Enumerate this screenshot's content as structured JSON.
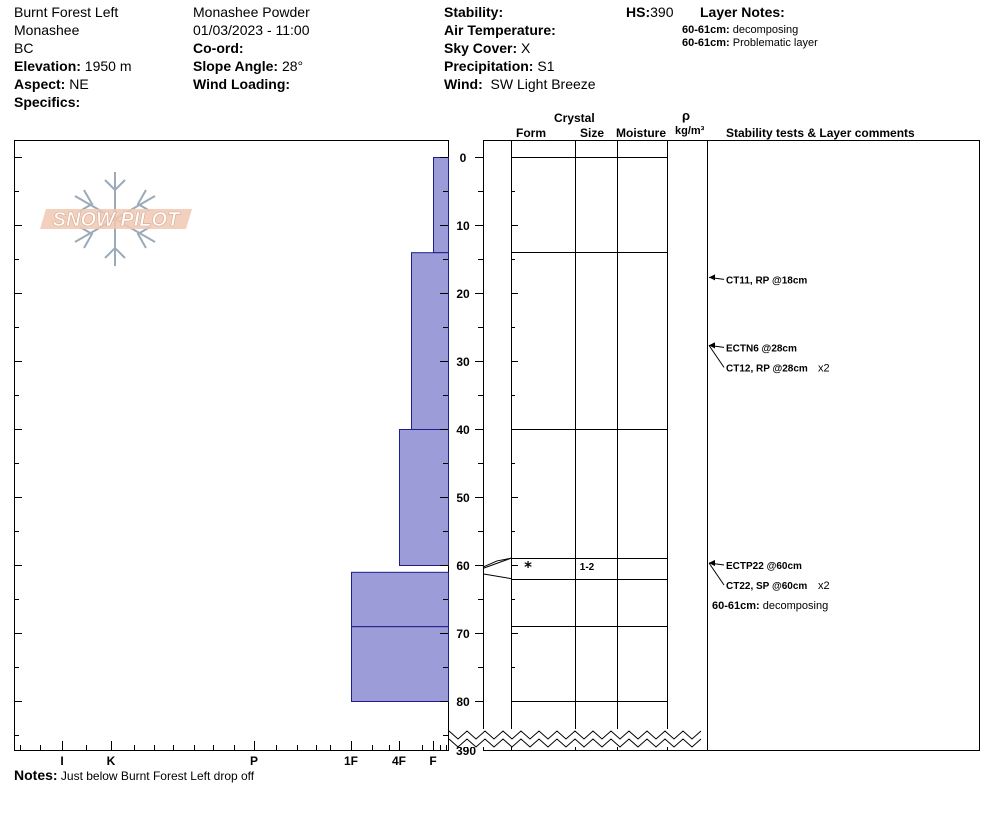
{
  "header": {
    "location": "Burnt Forest Left",
    "range": "Monashee",
    "province": "BC",
    "elevation_label": "Elevation:",
    "elevation_value": "1950 m",
    "aspect_label": "Aspect:",
    "aspect_value": "NE",
    "specifics_label": "Specifics:",
    "operation": "Monashee  Powder",
    "datetime": "01/03/2023 - 11:00",
    "coord_label": "Co-ord:",
    "slope_label": "Slope Angle:",
    "slope_value": "28°",
    "wind_loading_label": "Wind Loading:",
    "stability_label": "Stability:",
    "air_temp_label": "Air Temperature:",
    "sky_label": "Sky Cover:",
    "sky_value": "X",
    "precip_label": "Precipitation:",
    "precip_value": "S1",
    "wind_label": "Wind:",
    "wind_value": "SW  Light Breeze",
    "hs_label": "HS:",
    "hs_value": "390",
    "layer_notes_label": "Layer Notes:",
    "layer_notes": [
      {
        "depth": "60-61cm:",
        "text": "decomposing"
      },
      {
        "depth": "60-61cm:",
        "text": "Problematic layer"
      }
    ]
  },
  "logo_text": "SNOW PILOT",
  "columns": {
    "crystal": "Crystal",
    "form": "Form",
    "size": "Size",
    "moisture": "Moisture",
    "rho": "ρ",
    "density_unit": "kg/m³",
    "stability": "Stability tests & Layer comments"
  },
  "chart_data": {
    "type": "bar",
    "title": "",
    "xlabel": "",
    "ylabel": "",
    "ylim": [
      0,
      85
    ],
    "orientation": "horizontal",
    "hardness_ticks": [
      "I",
      "K",
      "P",
      "1F",
      "4F",
      "F"
    ],
    "depth_ticks": [
      0,
      10,
      20,
      30,
      40,
      50,
      60,
      70,
      80
    ],
    "hs_tick": "390",
    "hardness_layers": [
      {
        "top": 0,
        "bottom": 14,
        "hardness": "F"
      },
      {
        "top": 14,
        "bottom": 40,
        "hardness": "F+"
      },
      {
        "top": 40,
        "bottom": 60,
        "hardness": "4F-"
      },
      {
        "top": 61,
        "bottom": 69,
        "hardness": "1F+"
      },
      {
        "top": 69,
        "bottom": 80,
        "hardness": "1F"
      }
    ],
    "layer_boundaries": [
      0,
      14,
      40,
      59,
      62,
      69,
      80
    ],
    "grain_rows": [
      {
        "depth": 60,
        "form": "*",
        "size": "1-2"
      }
    ],
    "stability_tests": [
      {
        "depth": 18,
        "label": "CT11, RP @18cm",
        "mult": ""
      },
      {
        "depth": 28,
        "label": "ECTN6 @28cm",
        "mult": ""
      },
      {
        "depth": 28,
        "label": "CT12, RP @28cm",
        "mult": "x2"
      },
      {
        "depth": 60,
        "label": "ECTP22 @60cm",
        "mult": ""
      },
      {
        "depth": 60,
        "label": "CT22, SP @60cm",
        "mult": "x2"
      }
    ],
    "layer_comments": [
      {
        "depth": 60,
        "label": "60-61cm:",
        "text": "decomposing"
      }
    ]
  },
  "notes": {
    "label": "Notes:",
    "text": "Just below Burnt Forest Left drop off"
  },
  "colors": {
    "bar_fill": "#9c9cd8",
    "bar_stroke": "#1e1e8c",
    "logo": "#e6b8a2",
    "logo_flake": "#9aaab8"
  }
}
